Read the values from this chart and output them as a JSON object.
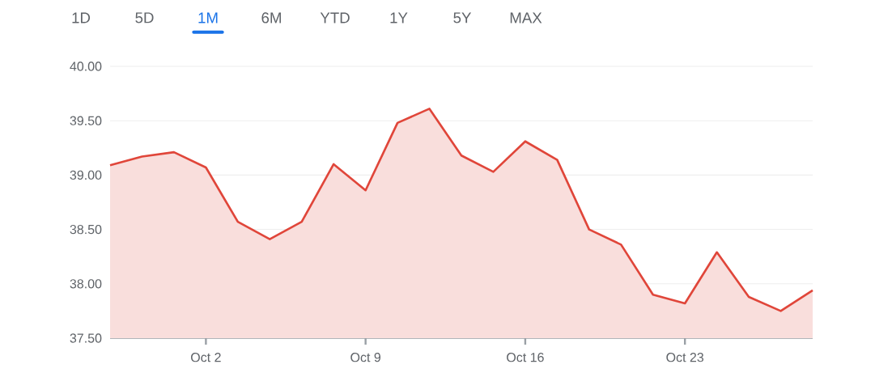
{
  "chart_data": {
    "type": "area",
    "annotations": [
      "1D",
      "5D",
      "1M",
      "6M",
      "YTD",
      "1Y",
      "5Y",
      "MAX"
    ],
    "categories": [
      null,
      null,
      null,
      "Oct 2",
      null,
      null,
      null,
      null,
      "Oct 9",
      null,
      null,
      null,
      null,
      "Oct 16",
      null,
      null,
      null,
      null,
      "Oct 23",
      null,
      null,
      null,
      null
    ],
    "series": [
      {
        "color": "#e0463a",
        "values": [
          39.09,
          39.17,
          39.21,
          39.07,
          38.57,
          38.41,
          38.57,
          39.1,
          38.86,
          39.48,
          39.61,
          39.18,
          39.03,
          39.31,
          39.14,
          38.5,
          38.36,
          37.9,
          37.82,
          38.29,
          37.88,
          37.75,
          37.94
        ]
      }
    ],
    "ylim": [
      37.5,
      40
    ],
    "yticks": [
      {
        "value": 37.5,
        "label": "37.50"
      },
      {
        "value": 38,
        "label": "38.00"
      },
      {
        "value": 38.5,
        "label": "38.50"
      },
      {
        "value": 39,
        "label": "39.00"
      },
      {
        "value": 39.5,
        "label": "39.50"
      },
      {
        "value": 40,
        "label": "40.00"
      }
    ],
    "grid": "y"
  }
}
